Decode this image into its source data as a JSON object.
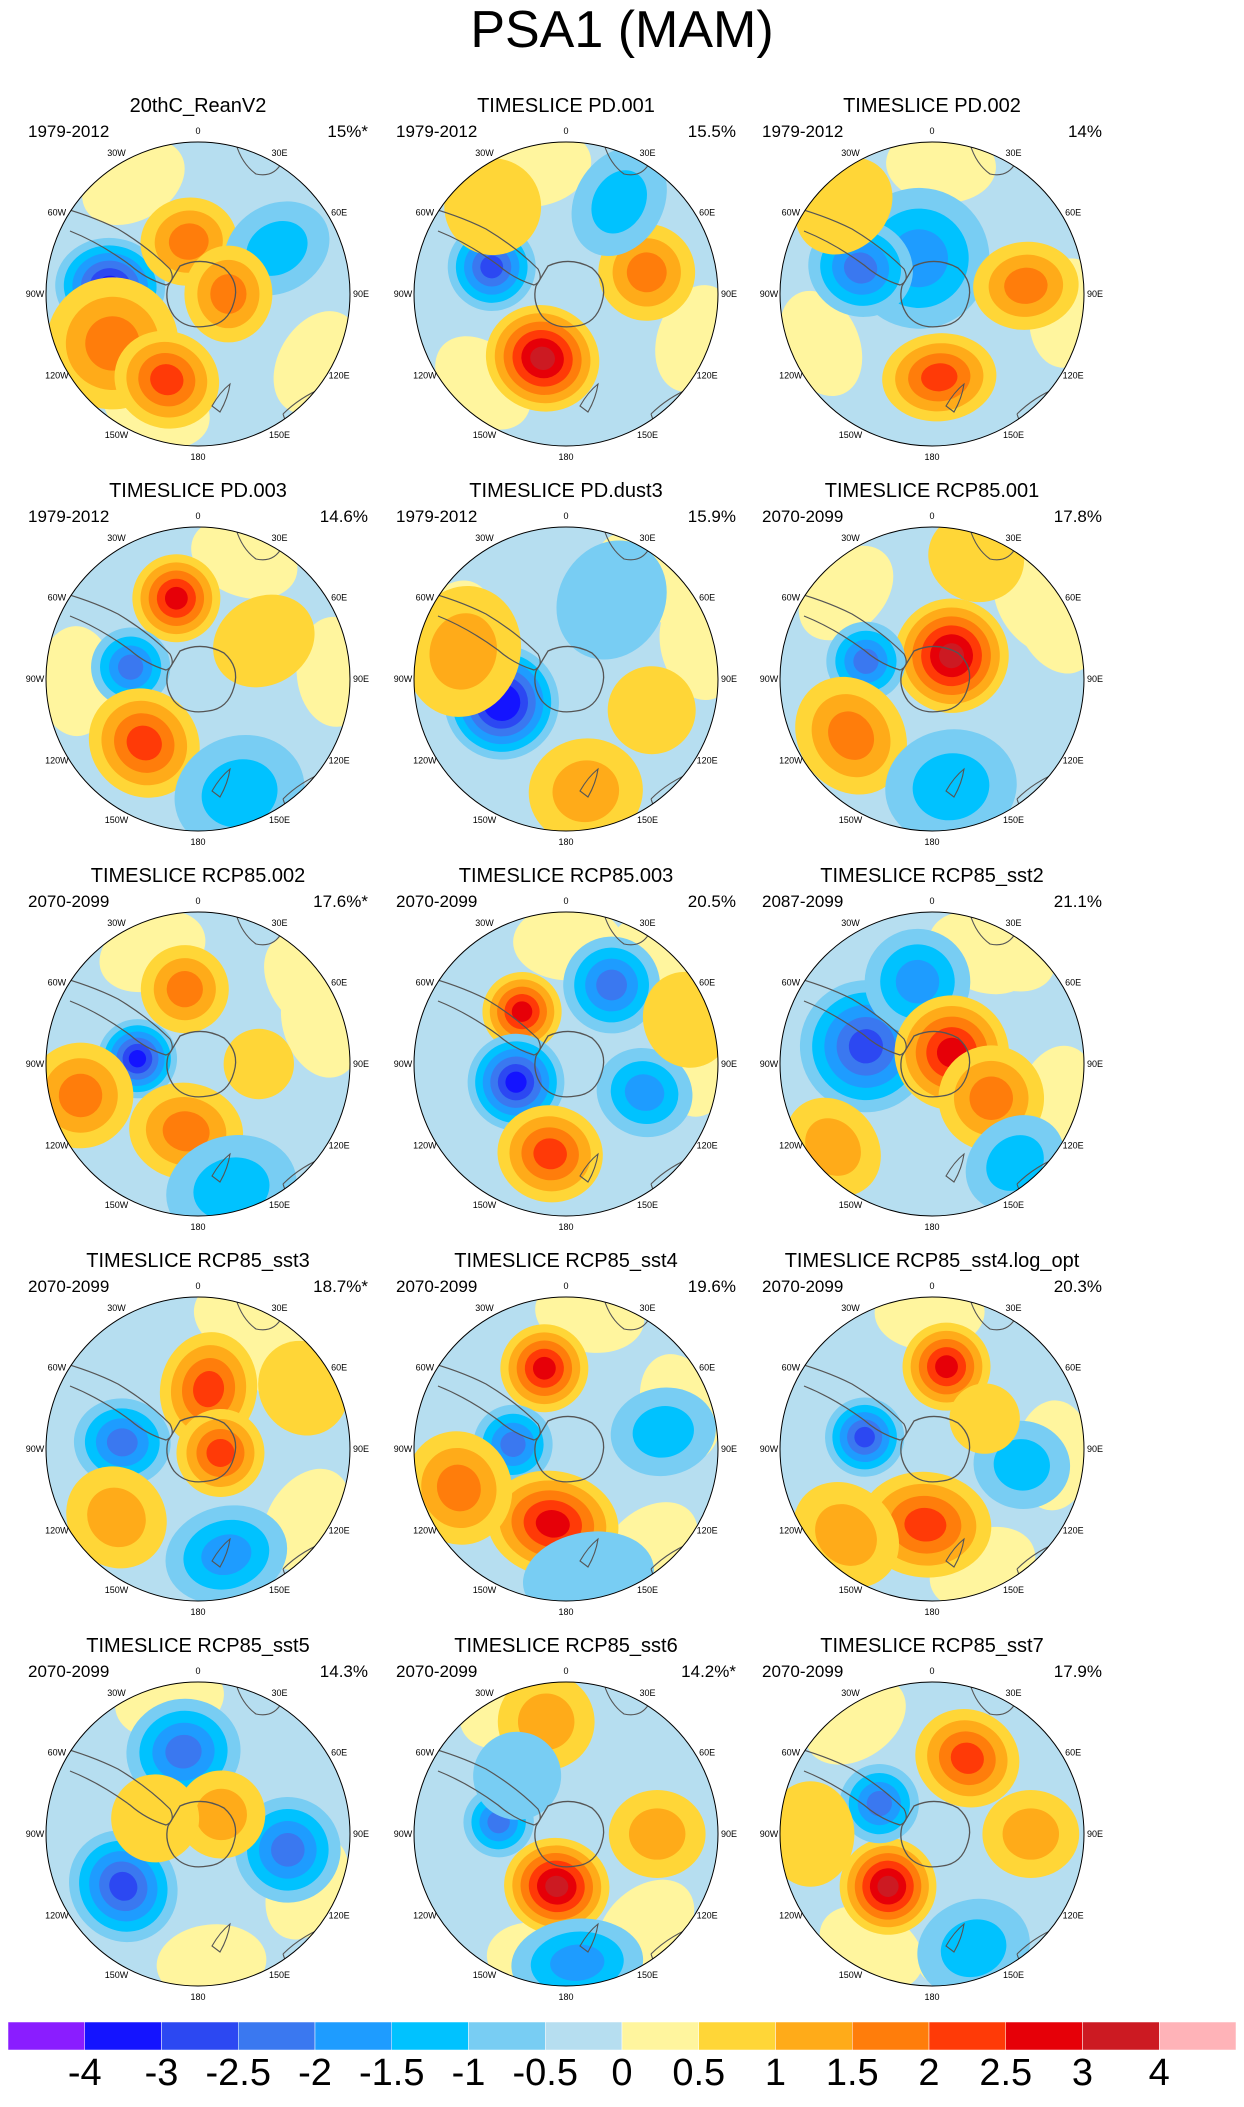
{
  "title": "PSA1 (MAM)",
  "panels": [
    {
      "title": "20thC_ReanV2",
      "period": "1979-2012",
      "variance": "15%*",
      "blobs": [
        [
          -85,
          0.58,
          2.2,
          2.5,
          -3.2
        ],
        [
          -120,
          0.65,
          3,
          3,
          1.8
        ],
        [
          -160,
          0.6,
          2.4,
          2.2,
          2
        ],
        [
          -10,
          0.35,
          2.2,
          2,
          1.8
        ],
        [
          60,
          0.6,
          2,
          2.5,
          -1.3
        ],
        [
          90,
          0.2,
          2.2,
          2,
          1.5
        ]
      ]
    },
    {
      "title": "TIMESLICE PD.001",
      "period": "1979-2012",
      "variance": "15.5%",
      "blobs": [
        [
          -70,
          0.52,
          2,
          2,
          -2.5
        ],
        [
          -160,
          0.45,
          2.6,
          2.4,
          3
        ],
        [
          75,
          0.55,
          2.2,
          2.2,
          1.8
        ],
        [
          30,
          0.7,
          2,
          2.6,
          -1.3
        ],
        [
          -40,
          0.75,
          2.2,
          2.2,
          0.8
        ]
      ]
    },
    {
      "title": "TIMESLICE PD.002",
      "period": "1979-2012",
      "variance": "14%",
      "blobs": [
        [
          -20,
          0.25,
          3.2,
          3.2,
          -1.8
        ],
        [
          -70,
          0.5,
          2.2,
          2.4,
          -2.3
        ],
        [
          175,
          0.55,
          2.6,
          2,
          2.2
        ],
        [
          85,
          0.62,
          2,
          2.4,
          1.6
        ],
        [
          -45,
          0.82,
          2.4,
          2,
          0.9
        ]
      ]
    },
    {
      "title": "TIMESLICE PD.003",
      "period": "1979-2012",
      "variance": "14.6%",
      "blobs": [
        [
          -15,
          0.55,
          2,
          2,
          2.8
        ],
        [
          -80,
          0.45,
          1.8,
          1.8,
          -2.2
        ],
        [
          -140,
          0.55,
          2.6,
          2.4,
          2.2
        ],
        [
          160,
          0.8,
          3,
          2.6,
          -1.2
        ],
        [
          60,
          0.5,
          2,
          2.4,
          0.9
        ]
      ]
    },
    {
      "title": "TIMESLICE PD.dust3",
      "period": "1979-2012",
      "variance": "15.9%",
      "blobs": [
        [
          -110,
          0.45,
          2.6,
          2.6,
          -3.5
        ],
        [
          -75,
          0.7,
          3,
          2.6,
          1.4
        ],
        [
          170,
          0.75,
          2.6,
          2.4,
          1.2
        ],
        [
          30,
          0.6,
          2.4,
          2.8,
          -0.9
        ],
        [
          110,
          0.6,
          2,
          2,
          0.7
        ]
      ]
    },
    {
      "title": "TIMESLICE RCP85.001",
      "period": "2070-2099",
      "variance": "17.8%",
      "blobs": [
        [
          40,
          0.2,
          2.6,
          2.6,
          3.3
        ],
        [
          -75,
          0.45,
          1.8,
          1.8,
          -2
        ],
        [
          -125,
          0.65,
          2.8,
          2.4,
          1.8
        ],
        [
          170,
          0.72,
          3,
          2.6,
          -1
        ],
        [
          20,
          0.85,
          2.2,
          2,
          0.8
        ]
      ]
    },
    {
      "title": "TIMESLICE RCP85.002",
      "period": "2070-2099",
      "variance": "17.6%*",
      "blobs": [
        [
          -85,
          0.4,
          1.8,
          1.8,
          -3.4
        ],
        [
          -105,
          0.8,
          2.4,
          2.4,
          1.8
        ],
        [
          -10,
          0.5,
          2,
          2,
          1.8
        ],
        [
          -170,
          0.45,
          2.6,
          2.2,
          1.6
        ],
        [
          165,
          0.85,
          3,
          2.4,
          -1.2
        ],
        [
          90,
          0.4,
          1.6,
          1.6,
          0.7
        ]
      ]
    },
    {
      "title": "TIMESLICE RCP85.003",
      "period": "2070-2099",
      "variance": "20.5%",
      "blobs": [
        [
          -40,
          0.45,
          1.8,
          1.8,
          2.6
        ],
        [
          -110,
          0.35,
          2.2,
          2.2,
          -3.4
        ],
        [
          30,
          0.6,
          2.2,
          2.2,
          -2
        ],
        [
          -170,
          0.6,
          2.4,
          2.2,
          2
        ],
        [
          110,
          0.55,
          2,
          2.2,
          -1.6
        ],
        [
          70,
          0.85,
          2.2,
          2,
          0.8
        ]
      ]
    },
    {
      "title": "TIMESLICE RCP85_sst2",
      "period": "2087-2099",
      "variance": "21.1%",
      "blobs": [
        [
          -75,
          0.45,
          3,
          3,
          -2.8
        ],
        [
          -10,
          0.55,
          2.4,
          2.4,
          -1.6
        ],
        [
          60,
          0.15,
          2.6,
          2.6,
          2.8
        ],
        [
          120,
          0.45,
          2.4,
          2.4,
          1.8
        ],
        [
          140,
          0.85,
          2.4,
          2,
          -1.2
        ],
        [
          -130,
          0.85,
          2.4,
          2,
          1.2
        ]
      ]
    },
    {
      "title": "TIMESLICE RCP85_sst3",
      "period": "2070-2099",
      "variance": "18.7%*",
      "blobs": [
        [
          -85,
          0.5,
          2,
          2.2,
          -2.3
        ],
        [
          10,
          0.4,
          2.2,
          2.6,
          2.4
        ],
        [
          100,
          0.15,
          2,
          2,
          2
        ],
        [
          165,
          0.72,
          2.8,
          2.2,
          -1.8
        ],
        [
          -130,
          0.7,
          2.4,
          2.2,
          1.2
        ],
        [
          60,
          0.8,
          2.2,
          2,
          0.8
        ]
      ]
    },
    {
      "title": "TIMESLICE RCP85_sst4",
      "period": "2070-2099",
      "variance": "19.6%",
      "blobs": [
        [
          -15,
          0.55,
          2,
          2,
          2.9
        ],
        [
          -85,
          0.35,
          1.8,
          1.8,
          -2.4
        ],
        [
          -170,
          0.5,
          3,
          2.4,
          2.6
        ],
        [
          -110,
          0.75,
          2.6,
          2.4,
          1.6
        ],
        [
          80,
          0.65,
          2,
          2.4,
          -1
        ],
        [
          170,
          0.85,
          3,
          2,
          -0.9
        ]
      ]
    },
    {
      "title": "TIMESLICE RCP85_sst4.log_opt",
      "period": "2070-2099",
      "variance": "20.3%",
      "blobs": [
        [
          10,
          0.55,
          2,
          2,
          2.8
        ],
        [
          -80,
          0.45,
          1.8,
          1.8,
          -2.7
        ],
        [
          -175,
          0.5,
          3,
          2.4,
          2.4
        ],
        [
          100,
          0.6,
          2,
          2.2,
          -1.2
        ],
        [
          -135,
          0.8,
          2.6,
          2.2,
          1.2
        ],
        [
          60,
          0.4,
          1.6,
          1.6,
          0.9
        ]
      ]
    },
    {
      "title": "TIMESLICE RCP85_sst5",
      "period": "2070-2099",
      "variance": "14.3%",
      "blobs": [
        [
          -10,
          0.55,
          2.6,
          2.4,
          -2.3
        ],
        [
          -125,
          0.6,
          2.6,
          2.4,
          -2.6
        ],
        [
          100,
          0.6,
          2.4,
          2.4,
          -2
        ],
        [
          50,
          0.2,
          2,
          2,
          1.2
        ],
        [
          -70,
          0.3,
          2,
          2,
          0.9
        ]
      ]
    },
    {
      "title": "TIMESLICE RCP85_sst6",
      "period": "2070-2099",
      "variance": "14.2%*",
      "blobs": [
        [
          -170,
          0.35,
          2.4,
          2.2,
          3
        ],
        [
          -80,
          0.45,
          1.6,
          1.6,
          -2.2
        ],
        [
          -10,
          0.75,
          2.2,
          2.2,
          1.4
        ],
        [
          175,
          0.85,
          3,
          2,
          -1.6
        ],
        [
          90,
          0.6,
          2,
          2.2,
          1
        ],
        [
          -40,
          0.5,
          2,
          2,
          -0.8
        ]
      ]
    },
    {
      "title": "TIMESLICE RCP85_sst7",
      "period": "2070-2099",
      "variance": "17.9%",
      "blobs": [
        [
          -140,
          0.45,
          2.2,
          2.2,
          3.3
        ],
        [
          25,
          0.55,
          2.4,
          2.2,
          2.4
        ],
        [
          -60,
          0.4,
          1.8,
          1.8,
          -2.1
        ],
        [
          90,
          0.65,
          2,
          2.2,
          1.4
        ],
        [
          160,
          0.8,
          2.6,
          2.2,
          -1
        ],
        [
          -90,
          0.8,
          2.4,
          2,
          0.8
        ]
      ]
    }
  ],
  "longitude_labels": [
    {
      "lon": 0,
      "text": "0"
    },
    {
      "lon": 30,
      "text": "30E"
    },
    {
      "lon": 60,
      "text": "60E"
    },
    {
      "lon": 90,
      "text": "90E"
    },
    {
      "lon": 120,
      "text": "120E"
    },
    {
      "lon": 150,
      "text": "150E"
    },
    {
      "lon": 180,
      "text": "180"
    },
    {
      "lon": -150,
      "text": "150W"
    },
    {
      "lon": -120,
      "text": "120W"
    },
    {
      "lon": -90,
      "text": "90W"
    },
    {
      "lon": -60,
      "text": "60W"
    },
    {
      "lon": -30,
      "text": "30W"
    }
  ],
  "colorbar": {
    "tick_labels": [
      "-4",
      "-3",
      "-2.5",
      "-2",
      "-1.5",
      "-1",
      "-0.5",
      "0",
      "0.5",
      "1",
      "1.5",
      "2",
      "2.5",
      "3",
      "4"
    ],
    "colors": [
      "#8a1dff",
      "#1414ff",
      "#2c48f2",
      "#3a78f0",
      "#1e9cff",
      "#00c2ff",
      "#78cdf3",
      "#b6def0",
      "#fff59e",
      "#ffd637",
      "#ffab19",
      "#ff7d0b",
      "#ff3a07",
      "#e60008",
      "#cc1a22",
      "#ffb3b8"
    ]
  }
}
